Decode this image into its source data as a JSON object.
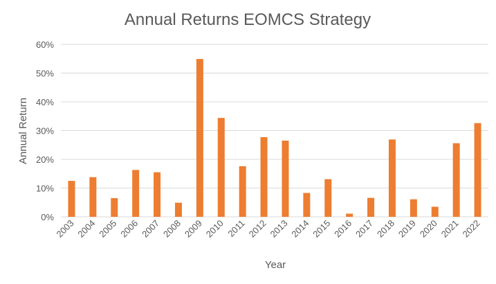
{
  "chart_data": {
    "type": "bar",
    "title": "Annual Returns EOMCS Strategy",
    "xlabel": "Year",
    "ylabel": "Annual Return",
    "ylim": [
      0,
      0.6
    ],
    "ytick_step": 0.1,
    "ytick_format": "percent",
    "grid": true,
    "legend": "none",
    "categories": [
      "2003",
      "2004",
      "2005",
      "2006",
      "2007",
      "2008",
      "2009",
      "2010",
      "2011",
      "2012",
      "2013",
      "2014",
      "2015",
      "2016",
      "2017",
      "2018",
      "2019",
      "2020",
      "2021",
      "2022"
    ],
    "values": [
      0.125,
      0.138,
      0.065,
      0.163,
      0.155,
      0.049,
      0.549,
      0.344,
      0.176,
      0.277,
      0.265,
      0.083,
      0.131,
      0.011,
      0.066,
      0.269,
      0.061,
      0.035,
      0.256,
      0.326
    ],
    "colors": {
      "bar": "#ed7d31",
      "grid": "#d9d9d9",
      "text": "#595959"
    }
  }
}
